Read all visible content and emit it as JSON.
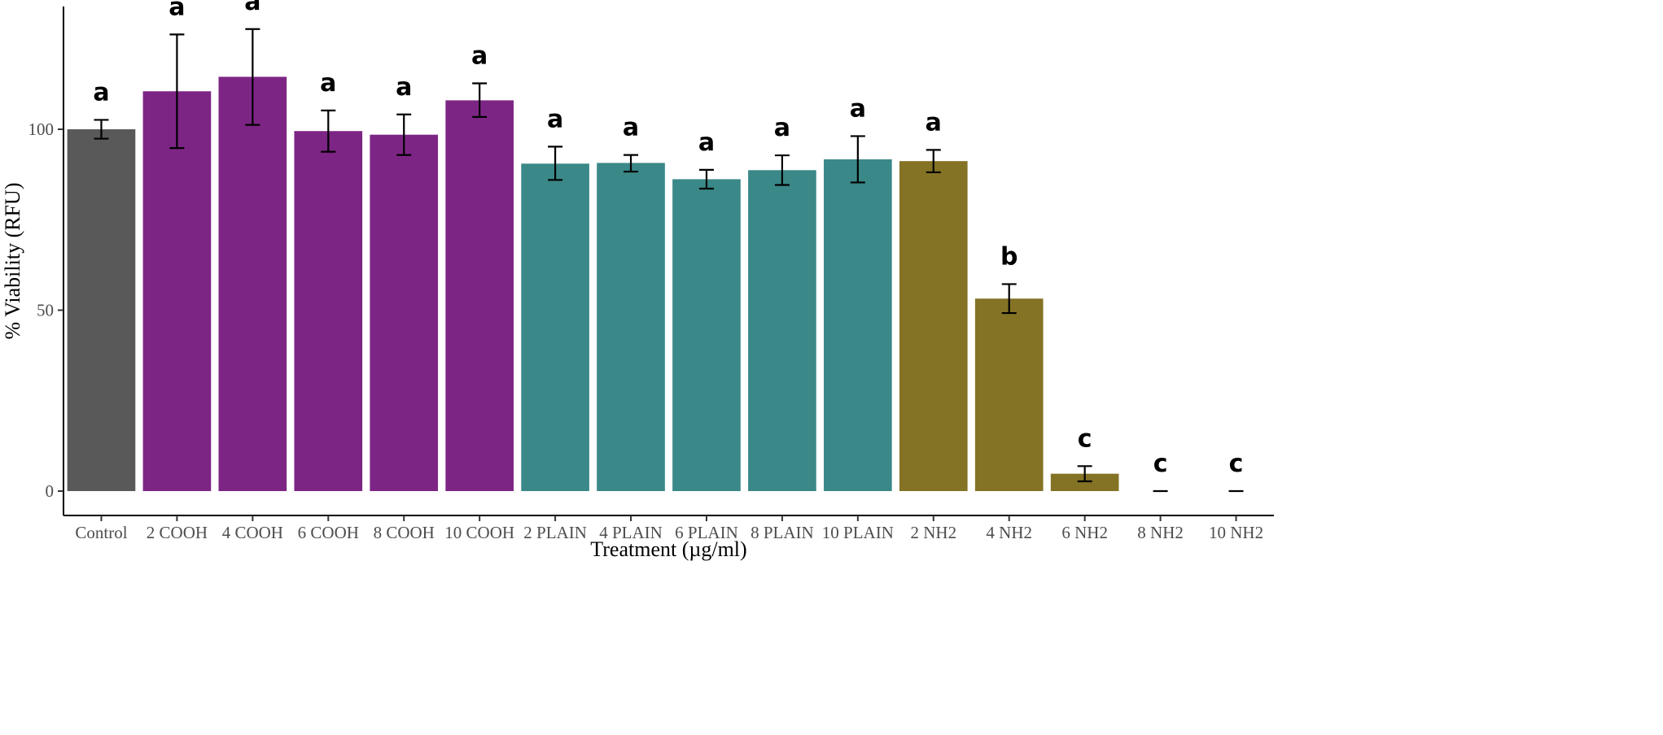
{
  "chart_data": {
    "type": "bar",
    "xlabel": "Treatment (µg/ml)",
    "ylabel": "% Viability (RFU)",
    "ylim": [
      -6,
      133
    ],
    "yticks": [
      0,
      50,
      100
    ],
    "grid": false,
    "legend": "none",
    "categories": [
      "Control",
      "2 COOH",
      "4 COOH",
      "6 COOH",
      "8 COOH",
      "10 COOH",
      "2 PLAIN",
      "4 PLAIN",
      "6 PLAIN",
      "8 PLAIN",
      "10 PLAIN",
      "2 NH2",
      "4 NH2",
      "6 NH2",
      "8 NH2",
      "10 NH2"
    ],
    "values": [
      100,
      110.5,
      114.5,
      99.5,
      98.5,
      108,
      90.5,
      90.7,
      86.2,
      88.7,
      91.7,
      91.2,
      53.2,
      4.8,
      0,
      0
    ],
    "error_low": [
      97.4,
      94.8,
      101.2,
      93.8,
      92.9,
      103.4,
      86,
      88.3,
      83.6,
      84.6,
      85.3,
      88.1,
      49.2,
      2.7,
      0,
      0
    ],
    "error_high": [
      102.6,
      126.2,
      127.7,
      105.2,
      104.1,
      112.7,
      95.2,
      92.9,
      88.8,
      92.8,
      98.1,
      94.3,
      57.2,
      6.9,
      0,
      0
    ],
    "significance": [
      "a",
      "a",
      "a",
      "a",
      "a",
      "a",
      "a",
      "a",
      "a",
      "a",
      "a",
      "a",
      "b",
      "c",
      "c",
      "c"
    ],
    "colors": [
      "#595959",
      "#7d2585",
      "#7d2585",
      "#7d2585",
      "#7d2585",
      "#7d2585",
      "#3b8888",
      "#3b8888",
      "#3b8888",
      "#3b8888",
      "#3b8888",
      "#847325",
      "#847325",
      "#847325",
      "#847325",
      "#847325"
    ]
  }
}
